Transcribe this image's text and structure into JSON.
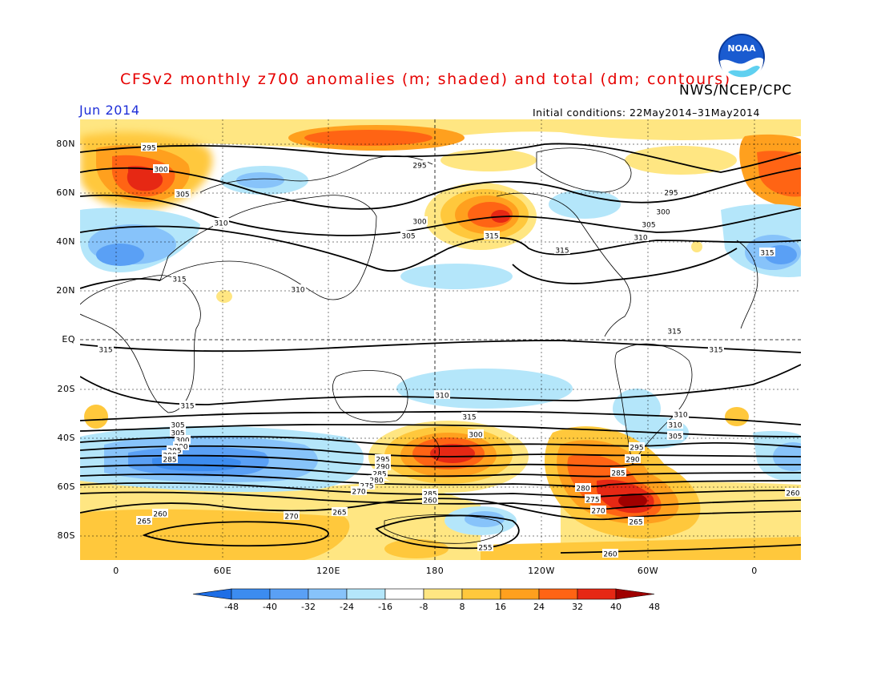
{
  "title": "CFSv2 monthly z700 anomalies (m; shaded) and total (dm; contours)",
  "agency": "NWS/NCEP/CPC",
  "month": "Jun 2014",
  "initial_conditions": "Initial conditions: 22May2014–31May2014",
  "logo_text": "NOAA",
  "lat_labels": [
    "80N",
    "60N",
    "40N",
    "20N",
    "EQ",
    "20S",
    "40S",
    "60S",
    "80S"
  ],
  "lon_labels": [
    "0",
    "60E",
    "120E",
    "180",
    "120W",
    "60W",
    "0"
  ],
  "colorbar": {
    "levels": [
      "-48",
      "-40",
      "-32",
      "-24",
      "-16",
      "-8",
      "8",
      "16",
      "24",
      "32",
      "40",
      "48"
    ],
    "colors": [
      "#1e6ee6",
      "#3c8cf0",
      "#5aa0f5",
      "#87c3fa",
      "#b4e6fa",
      "#ffffff",
      "#ffe682",
      "#ffc83c",
      "#ffa01e",
      "#ff6414",
      "#e62814",
      "#a00000"
    ]
  },
  "contour_labels": [
    {
      "text": "295"
    },
    {
      "text": "300"
    },
    {
      "text": "305"
    },
    {
      "text": "310"
    },
    {
      "text": "315"
    },
    {
      "text": "295"
    },
    {
      "text": "300"
    },
    {
      "text": "305"
    },
    {
      "text": "315"
    },
    {
      "text": "315"
    },
    {
      "text": "300"
    },
    {
      "text": "305"
    },
    {
      "text": "310"
    },
    {
      "text": "295"
    },
    {
      "text": "315"
    },
    {
      "text": "310"
    },
    {
      "text": "315"
    },
    {
      "text": "315"
    },
    {
      "text": "315"
    },
    {
      "text": "315"
    },
    {
      "text": "310"
    },
    {
      "text": "315"
    },
    {
      "text": "305"
    },
    {
      "text": "300"
    },
    {
      "text": "310"
    },
    {
      "text": "305"
    },
    {
      "text": "300"
    },
    {
      "text": "310"
    },
    {
      "text": "305"
    },
    {
      "text": "300"
    },
    {
      "text": "295"
    },
    {
      "text": "290"
    },
    {
      "text": "285"
    },
    {
      "text": "295"
    },
    {
      "text": "290"
    },
    {
      "text": "285"
    },
    {
      "text": "280"
    },
    {
      "text": "275"
    },
    {
      "text": "270"
    },
    {
      "text": "285"
    },
    {
      "text": "260"
    },
    {
      "text": "265"
    },
    {
      "text": "270"
    },
    {
      "text": "260"
    },
    {
      "text": "265"
    },
    {
      "text": "255"
    },
    {
      "text": "295"
    },
    {
      "text": "290"
    },
    {
      "text": "285"
    },
    {
      "text": "280"
    },
    {
      "text": "275"
    },
    {
      "text": "270"
    },
    {
      "text": "265"
    },
    {
      "text": "260"
    },
    {
      "text": "260"
    }
  ]
}
